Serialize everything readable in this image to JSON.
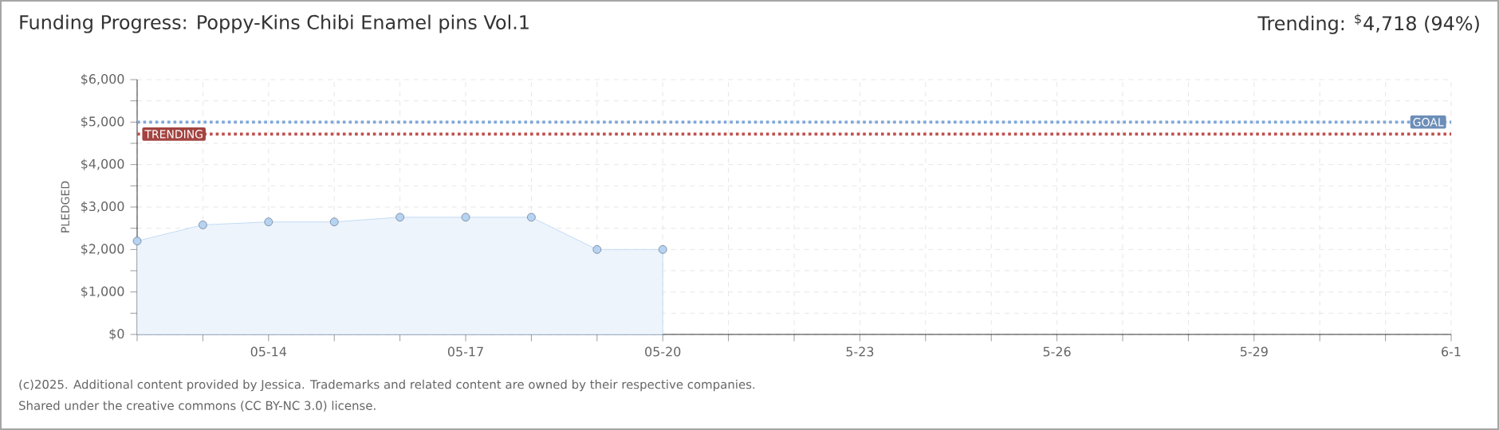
{
  "chart_data": {
    "type": "area",
    "title": "Funding Progress: Poppy-Kins Chibi Enamel pins Vol.1",
    "subtitle": "Trending: $^{$}$4,718 (94%)",
    "ylabel": "PLEDGED",
    "categories": [
      null,
      null,
      "05-14",
      null,
      null,
      "05-17",
      null,
      null,
      "05-20",
      null,
      null,
      "5-23",
      null,
      null,
      "5-26",
      null,
      null,
      "5-29",
      null,
      null,
      "6-1"
    ],
    "series": [
      {
        "color": "#b7d3f2",
        "values": [
          2200,
          2580,
          2650,
          2650,
          2760,
          2760,
          2760,
          2000,
          2000,
          null,
          null,
          null,
          null,
          null,
          null,
          null,
          null,
          null,
          null,
          null,
          null
        ]
      }
    ],
    "ylim": [
      0,
      6000
    ],
    "yticks": [
      {
        "value": 0,
        "label": "$0"
      },
      {
        "value": 500,
        "label": null
      },
      {
        "value": 1000,
        "label": "$1,000"
      },
      {
        "value": 1500,
        "label": null
      },
      {
        "value": 2000,
        "label": "$2,000"
      },
      {
        "value": 2500,
        "label": null
      },
      {
        "value": 3000,
        "label": "$3,000"
      },
      {
        "value": 3500,
        "label": null
      },
      {
        "value": 4000,
        "label": "$4,000"
      },
      {
        "value": 4500,
        "label": null
      },
      {
        "value": 5000,
        "label": "$5,000"
      },
      {
        "value": 5500,
        "label": null
      },
      {
        "value": 6000,
        "label": "$6,000"
      }
    ],
    "ref_lines": [
      {
        "axis": "y",
        "value": 5000,
        "label": "GOAL",
        "color": "#7fa7d9",
        "line_style": "dotted"
      },
      {
        "axis": "y",
        "value": 4718,
        "label": "TRENDING",
        "color": "#c0504d",
        "line_style": "dotted"
      }
    ],
    "grid": true,
    "marker": "circle",
    "annotations": [
      "(c)2025. Additional content provided by Jessica. Trademarks and related content are owned by their respective companies.",
      "Shared under the creative commons (CC BY-NC 3.0) license."
    ]
  }
}
